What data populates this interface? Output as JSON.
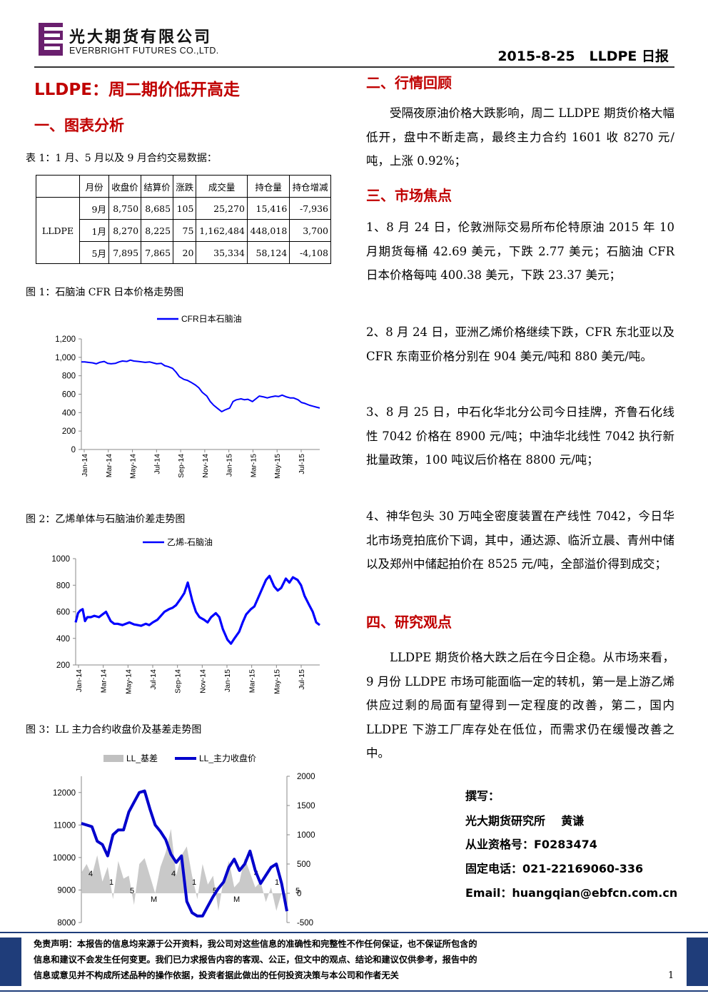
{
  "header": {
    "company_cn": "光大期货有限公司",
    "company_en": "EVERBRIGHT FUTURES CO.,LTD.",
    "report": "2015-8-25   LLDPE 日报"
  },
  "title": "LLDPE：周二期价低开高走",
  "sec1": "一、图表分析",
  "table1": {
    "caption": "表 1：1 月、5 月以及 9 月合约交易数据：",
    "headers": [
      "",
      "月份",
      "收盘价",
      "结算价",
      "涨跌",
      "成交量",
      "持仓量",
      "持仓增减"
    ],
    "product": "LLDPE",
    "rows": [
      [
        "9月",
        "8,750",
        "8,685",
        "105",
        "25,270",
        "15,416",
        "-7,936"
      ],
      [
        "1月",
        "8,270",
        "8,225",
        "75",
        "1,162,484",
        "448,018",
        "3,700"
      ],
      [
        "5月",
        "7,895",
        "7,865",
        "20",
        "35,334",
        "58,124",
        "-4,108"
      ]
    ]
  },
  "fig1": {
    "caption": "图 1：石脑油 CFR 日本价格走势图"
  },
  "fig2": {
    "caption": "图 2：乙烯单体与石脑油价差走势图"
  },
  "fig3": {
    "caption": "图 3：LL 主力合约收盘价及基差走势图"
  },
  "chart_data": [
    {
      "type": "line",
      "legend": [
        "CFR日本石脑油"
      ],
      "y_ticks": [
        "0",
        "200",
        "400",
        "600",
        "800",
        "1,000",
        "1,200"
      ],
      "ylim": [
        0,
        1200
      ],
      "x_ticks": [
        "Jan-14",
        "Mar-14",
        "May-14",
        "Jul-14",
        "Sep-14",
        "Nov-14",
        "Jan-15",
        "Mar-15",
        "May-15",
        "Jul-15"
      ],
      "series": [
        {
          "name": "CFR日本石脑油",
          "color": "#0000ff",
          "points": [
            [
              0,
              950
            ],
            [
              0.3,
              950
            ],
            [
              0.6,
              945
            ],
            [
              1,
              940
            ],
            [
              1.3,
              930
            ],
            [
              1.6,
              945
            ],
            [
              2,
              955
            ],
            [
              2.3,
              935
            ],
            [
              2.6,
              930
            ],
            [
              3,
              935
            ],
            [
              3.3,
              950
            ],
            [
              3.6,
              960
            ],
            [
              4,
              955
            ],
            [
              4.3,
              970
            ],
            [
              4.6,
              960
            ],
            [
              5,
              955
            ],
            [
              5.3,
              950
            ],
            [
              5.6,
              945
            ],
            [
              6,
              950
            ],
            [
              6.3,
              940
            ],
            [
              6.6,
              930
            ],
            [
              7,
              935
            ],
            [
              7.3,
              910
            ],
            [
              7.6,
              900
            ],
            [
              8,
              880
            ],
            [
              8.3,
              840
            ],
            [
              8.6,
              790
            ],
            [
              9,
              760
            ],
            [
              9.3,
              750
            ],
            [
              9.6,
              730
            ],
            [
              10,
              700
            ],
            [
              10.3,
              670
            ],
            [
              10.6,
              620
            ],
            [
              11,
              580
            ],
            [
              11.3,
              520
            ],
            [
              11.6,
              480
            ],
            [
              12,
              440
            ],
            [
              12.3,
              410
            ],
            [
              12.6,
              430
            ],
            [
              13,
              450
            ],
            [
              13.3,
              520
            ],
            [
              13.6,
              540
            ],
            [
              14,
              550
            ],
            [
              14.3,
              540
            ],
            [
              14.6,
              545
            ],
            [
              15,
              520
            ],
            [
              15.3,
              550
            ],
            [
              15.6,
              580
            ],
            [
              16,
              570
            ],
            [
              16.3,
              560
            ],
            [
              16.6,
              570
            ],
            [
              17,
              580
            ],
            [
              17.3,
              575
            ],
            [
              17.6,
              590
            ],
            [
              18,
              570
            ],
            [
              18.3,
              560
            ],
            [
              18.6,
              560
            ],
            [
              19,
              540
            ],
            [
              19.3,
              510
            ],
            [
              19.6,
              500
            ],
            [
              20,
              480
            ],
            [
              20.3,
              470
            ],
            [
              20.6,
              460
            ],
            [
              20.9,
              450
            ]
          ]
        }
      ]
    },
    {
      "type": "line",
      "legend": [
        "乙烯-石脑油"
      ],
      "y_ticks": [
        "200",
        "400",
        "600",
        "800",
        "1000"
      ],
      "ylim": [
        200,
        1000
      ],
      "x_ticks": [
        "Jan-14",
        "Mar-14",
        "May-14",
        "Jul-14",
        "Sep-14",
        "Nov-14",
        "Jan-15",
        "Mar-15",
        "May-15",
        "Jul-15"
      ],
      "series": [
        {
          "name": "乙烯-石脑油",
          "color": "#0000ff",
          "points": [
            [
              0,
              520
            ],
            [
              0.2,
              590
            ],
            [
              0.4,
              610
            ],
            [
              0.6,
              620
            ],
            [
              0.8,
              530
            ],
            [
              1,
              560
            ],
            [
              1.3,
              560
            ],
            [
              1.6,
              570
            ],
            [
              2,
              560
            ],
            [
              2.3,
              580
            ],
            [
              2.6,
              600
            ],
            [
              3,
              530
            ],
            [
              3.3,
              510
            ],
            [
              3.6,
              510
            ],
            [
              4,
              500
            ],
            [
              4.3,
              510
            ],
            [
              4.6,
              520
            ],
            [
              5,
              505
            ],
            [
              5.3,
              500
            ],
            [
              5.6,
              495
            ],
            [
              6,
              510
            ],
            [
              6.3,
              500
            ],
            [
              6.6,
              520
            ],
            [
              7,
              540
            ],
            [
              7.3,
              570
            ],
            [
              7.6,
              600
            ],
            [
              8,
              620
            ],
            [
              8.3,
              630
            ],
            [
              8.6,
              650
            ],
            [
              9,
              700
            ],
            [
              9.3,
              740
            ],
            [
              9.6,
              820
            ],
            [
              10,
              680
            ],
            [
              10.3,
              600
            ],
            [
              10.6,
              560
            ],
            [
              11,
              540
            ],
            [
              11.3,
              520
            ],
            [
              11.6,
              560
            ],
            [
              12,
              590
            ],
            [
              12.3,
              560
            ],
            [
              12.6,
              470
            ],
            [
              13,
              390
            ],
            [
              13.3,
              360
            ],
            [
              13.6,
              400
            ],
            [
              14,
              450
            ],
            [
              14.3,
              520
            ],
            [
              14.6,
              580
            ],
            [
              15,
              620
            ],
            [
              15.3,
              640
            ],
            [
              15.6,
              700
            ],
            [
              16,
              780
            ],
            [
              16.3,
              840
            ],
            [
              16.6,
              870
            ],
            [
              17,
              790
            ],
            [
              17.3,
              760
            ],
            [
              17.6,
              780
            ],
            [
              18,
              850
            ],
            [
              18.3,
              820
            ],
            [
              18.6,
              860
            ],
            [
              19,
              840
            ],
            [
              19.3,
              800
            ],
            [
              19.6,
              720
            ],
            [
              20,
              650
            ],
            [
              20.3,
              600
            ],
            [
              20.6,
              520
            ],
            [
              20.9,
              500
            ]
          ]
        }
      ]
    },
    {
      "type": "line",
      "legend": [
        "LL_基差",
        "LL_主力收盘价"
      ],
      "y_left_ticks": [
        "8000",
        "9000",
        "10000",
        "11000",
        "12000"
      ],
      "y_right_ticks": [
        "-500",
        "0",
        "500",
        "1000",
        "1500",
        "2000"
      ],
      "ylim_left": [
        8000,
        12500
      ],
      "ylim_right": [
        -500,
        2000
      ],
      "series": [
        {
          "name": "LL_基差",
          "color": "#c0c0c0",
          "points": [
            [
              0,
              350
            ],
            [
              0.5,
              500
            ],
            [
              1,
              300
            ],
            [
              1.5,
              650
            ],
            [
              2,
              200
            ],
            [
              2.5,
              450
            ],
            [
              3,
              -100
            ],
            [
              3.5,
              550
            ],
            [
              4,
              250
            ],
            [
              4.5,
              300
            ],
            [
              5,
              -200
            ],
            [
              5.5,
              500
            ],
            [
              6,
              600
            ],
            [
              6.5,
              300
            ],
            [
              7,
              0
            ],
            [
              7.5,
              450
            ],
            [
              8,
              700
            ],
            [
              8.5,
              1100
            ],
            [
              9,
              300
            ],
            [
              9.5,
              650
            ],
            [
              10,
              800
            ],
            [
              10.5,
              300
            ],
            [
              11,
              -100
            ],
            [
              11.5,
              500
            ],
            [
              12,
              150
            ],
            [
              12.5,
              300
            ],
            [
              13,
              -300
            ],
            [
              13.5,
              250
            ],
            [
              14,
              550
            ],
            [
              14.5,
              100
            ],
            [
              15,
              200
            ],
            [
              15.5,
              600
            ],
            [
              16,
              350
            ],
            [
              16.5,
              100
            ],
            [
              17,
              200
            ],
            [
              17.5,
              -150
            ],
            [
              18,
              100
            ],
            [
              18.5,
              -300
            ],
            [
              19,
              0
            ],
            [
              19.5,
              -250
            ]
          ]
        },
        {
          "name": "LL_主力收盘价",
          "color": "#0000cc",
          "points": [
            [
              0,
              11050
            ],
            [
              0.5,
              11000
            ],
            [
              1,
              10950
            ],
            [
              1.5,
              10500
            ],
            [
              2,
              10400
            ],
            [
              2.5,
              10050
            ],
            [
              3,
              10700
            ],
            [
              3.5,
              10850
            ],
            [
              4,
              10850
            ],
            [
              4.5,
              11400
            ],
            [
              5,
              11700
            ],
            [
              5.5,
              12000
            ],
            [
              6,
              12050
            ],
            [
              6.5,
              11500
            ],
            [
              7,
              11000
            ],
            [
              7.5,
              10800
            ],
            [
              8,
              10550
            ],
            [
              8.5,
              10100
            ],
            [
              9,
              9850
            ],
            [
              9.5,
              10050
            ],
            [
              10,
              8650
            ],
            [
              10.5,
              8300
            ],
            [
              11,
              8200
            ],
            [
              11.5,
              8200
            ],
            [
              12,
              8500
            ],
            [
              12.5,
              8800
            ],
            [
              13,
              9050
            ],
            [
              13.5,
              9250
            ],
            [
              14,
              9700
            ],
            [
              14.5,
              9950
            ],
            [
              15,
              9600
            ],
            [
              15.5,
              9800
            ],
            [
              16,
              10200
            ],
            [
              16.5,
              9600
            ],
            [
              17,
              9200
            ],
            [
              17.5,
              9450
            ],
            [
              18,
              9700
            ],
            [
              18.5,
              9800
            ],
            [
              19,
              9200
            ],
            [
              19.5,
              8350
            ]
          ]
        }
      ],
      "overlay_labels": [
        "4",
        "1",
        "5",
        "M",
        "4",
        "1",
        "5",
        "M",
        "4",
        "1",
        "5"
      ]
    }
  ],
  "sec2": "二、行情回顾",
  "review": "受隔夜原油价格大跌影响，周二 LLDPE 期货价格大幅低开，盘中不断走高，最终主力合约 1601 收 8270 元/吨，上涨 0.92%；",
  "sec3": "三、市场焦点",
  "focus": [
    "1、8 月 24 日，伦敦洲际交易所布伦特原油 2015 年 10 月期货每桶 42.69 美元，下跌 2.77 美元；石脑油 CFR 日本价格每吨 400.38 美元，下跌 23.37 美元；",
    "2、8 月 24 日，亚洲乙烯价格继续下跌，CFR 东北亚以及 CFR 东南亚价格分别在 904 美元/吨和 880 美元/吨。",
    "3、8 月 25 日，中石化华北分公司今日挂牌，齐鲁石化线性 7042 价格在 8900 元/吨；中油华北线性 7042 执行新批量政策，100 吨议后价格在 8800 元/吨；",
    "4、神华包头 30 万吨全密度装置在产线性 7042，今日华北市场竞拍底价下调，其中，通达源、临沂立晨、青州中储以及郑州中储起拍价在 8525 元/吨，全部溢价得到成交；"
  ],
  "sec4": "四、研究观点",
  "view": "LLDPE 期货价格大跌之后在今日企稳。从市场来看，9 月份 LLDPE 市场可能面临一定的转机，第一是上游乙烯供应过剩的局面有望得到一定程度的改善，第二，国内 LLDPE 下游工厂库存处在低位，而需求仍在缓慢改善之中。",
  "author": {
    "l1": "撰写：",
    "l2": "光大期货研究所    黄谦",
    "l3": "从业资格号：F0283474",
    "l4": "固定电话：021-22169060-336",
    "l5": "Email：huangqian@ebfcn.com.cn"
  },
  "disclaimer": {
    "l1": "免责声明：本报告的信息均来源于公开资料，我公司对这些信息的准确性和完整性不作任何保证，也不保证所包含的",
    "l2": "信息和建议不会发生任何变更。我们已力求报告内容的客观、公正，但文中的观点、结论和建议仅供参考，报告中的",
    "l3": "信息或意见并不构成所述品种的操作依据，投资者据此做出的任何投资决策与本公司和作者无关"
  },
  "page_number": "1"
}
